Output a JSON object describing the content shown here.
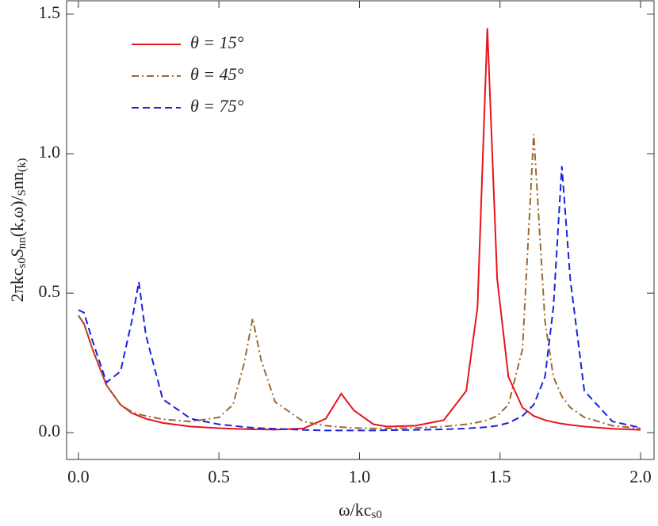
{
  "chart_data": {
    "type": "line",
    "ylabel_parts": [
      "2πkc",
      "s0",
      "S",
      "nn",
      "(k,ω)/",
      "S",
      "nn",
      "(k)"
    ],
    "xlabel_parts": [
      "ω/kc",
      "s0"
    ],
    "x": [
      0,
      0.02,
      0.05,
      0.1,
      0.15,
      0.19,
      0.215,
      0.24,
      0.3,
      0.4,
      0.5,
      0.55,
      0.59,
      0.62,
      0.65,
      0.7,
      0.8,
      0.88,
      0.935,
      0.98,
      1.05,
      1.1,
      1.2,
      1.3,
      1.38,
      1.42,
      1.455,
      1.49,
      1.53,
      1.58,
      1.62,
      1.66,
      1.69,
      1.72,
      1.75,
      1.8,
      1.9,
      2.0
    ],
    "series": [
      {
        "name": "θ = 15°",
        "color": "#e8141c",
        "dash": "solid",
        "values": [
          0.42,
          0.39,
          0.3,
          0.17,
          0.1,
          0.07,
          0.06,
          0.05,
          0.035,
          0.022,
          0.016,
          0.014,
          0.013,
          0.012,
          0.012,
          0.011,
          0.015,
          0.05,
          0.14,
          0.08,
          0.03,
          0.022,
          0.025,
          0.045,
          0.15,
          0.45,
          1.45,
          0.55,
          0.2,
          0.09,
          0.06,
          0.045,
          0.038,
          0.032,
          0.028,
          0.022,
          0.014,
          0.01
        ]
      },
      {
        "name": "θ = 45°",
        "color": "#9b6a33",
        "dash": "dashdot",
        "values": [
          0.42,
          0.39,
          0.3,
          0.17,
          0.1,
          0.075,
          0.066,
          0.06,
          0.048,
          0.04,
          0.055,
          0.1,
          0.25,
          0.41,
          0.26,
          0.11,
          0.04,
          0.025,
          0.02,
          0.017,
          0.015,
          0.015,
          0.017,
          0.022,
          0.03,
          0.037,
          0.045,
          0.06,
          0.1,
          0.3,
          1.07,
          0.4,
          0.2,
          0.13,
          0.09,
          0.055,
          0.025,
          0.015
        ]
      },
      {
        "name": "θ = 75°",
        "color": "#1a22e0",
        "dash": "dashed",
        "values": [
          0.44,
          0.43,
          0.33,
          0.18,
          0.22,
          0.4,
          0.54,
          0.35,
          0.12,
          0.05,
          0.03,
          0.025,
          0.02,
          0.018,
          0.016,
          0.014,
          0.01,
          0.008,
          0.008,
          0.008,
          0.008,
          0.009,
          0.01,
          0.012,
          0.015,
          0.018,
          0.02,
          0.025,
          0.035,
          0.06,
          0.1,
          0.2,
          0.45,
          0.955,
          0.55,
          0.15,
          0.04,
          0.018
        ]
      }
    ],
    "xlim": [
      -0.042,
      2.048
    ],
    "ylim": [
      -0.096,
      1.548
    ],
    "xticks": [
      {
        "value": 0,
        "label": "0.0"
      },
      {
        "value": 0.5,
        "label": "0.5"
      },
      {
        "value": 1,
        "label": "1.0"
      },
      {
        "value": 1.5,
        "label": "1.5"
      },
      {
        "value": 2,
        "label": "2.0"
      }
    ],
    "yticks": [
      {
        "value": 0,
        "label": "0.0"
      },
      {
        "value": 0.5,
        "label": "0.5"
      },
      {
        "value": 1,
        "label": "1.0"
      },
      {
        "value": 1.5,
        "label": "1.5"
      }
    ]
  }
}
